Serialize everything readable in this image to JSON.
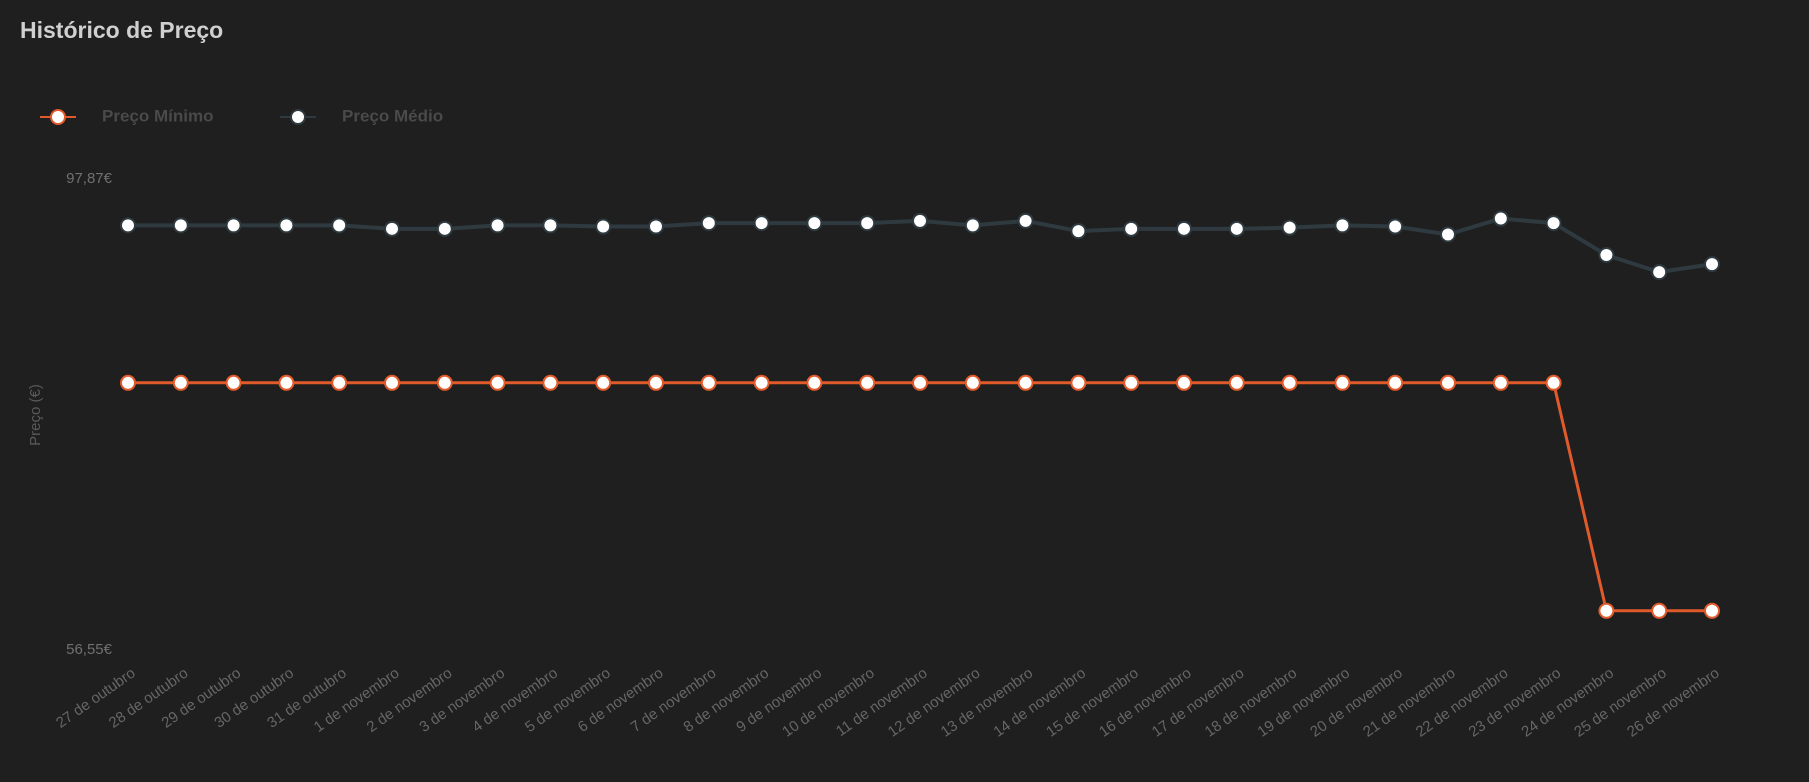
{
  "chart_data": {
    "type": "line",
    "title": "Histórico de Preço",
    "y_label": "Preço (€)",
    "categories": [
      "27 de outubro",
      "28 de outubro",
      "29 de outubro",
      "30 de outubro",
      "31 de outubro",
      "1 de novembro",
      "2 de novembro",
      "3 de novembro",
      "4 de novembro",
      "5 de novembro",
      "6 de novembro",
      "7 de novembro",
      "8 de novembro",
      "9 de novembro",
      "10 de novembro",
      "11 de novembro",
      "12 de novembro",
      "13 de novembro",
      "14 de novembro",
      "15 de novembro",
      "16 de novembro",
      "17 de novembro",
      "18 de novembro",
      "19 de novembro",
      "20 de novembro",
      "21 de novembro",
      "22 de novembro",
      "23 de novembro",
      "24 de novembro",
      "25 de novembro",
      "26 de novembro"
    ],
    "series": [
      {
        "name": "Preço Mínimo",
        "color": "#e05a2b",
        "values": [
          79.99,
          79.99,
          79.99,
          79.99,
          79.99,
          79.99,
          79.99,
          79.99,
          79.99,
          79.99,
          79.99,
          79.99,
          79.99,
          79.99,
          79.99,
          79.99,
          79.99,
          79.99,
          79.99,
          79.99,
          79.99,
          79.99,
          79.99,
          79.99,
          79.99,
          79.99,
          79.99,
          79.99,
          59.99,
          59.99,
          59.99
        ]
      },
      {
        "name": "Preço Médio",
        "color": "#2e3a40",
        "values": [
          93.8,
          93.8,
          93.8,
          93.8,
          93.8,
          93.5,
          93.5,
          93.8,
          93.8,
          93.7,
          93.7,
          94.0,
          94.0,
          94.0,
          94.0,
          94.2,
          93.8,
          94.2,
          93.3,
          93.5,
          93.5,
          93.5,
          93.6,
          93.8,
          93.7,
          93.0,
          94.4,
          94.0,
          91.2,
          89.7,
          90.4
        ]
      }
    ],
    "ylim": [
      56.55,
      97.87
    ],
    "yticks": [
      {
        "value": 97.87,
        "label": "97,87€"
      },
      {
        "value": 56.55,
        "label": "56,55€"
      }
    ],
    "grid": false
  }
}
